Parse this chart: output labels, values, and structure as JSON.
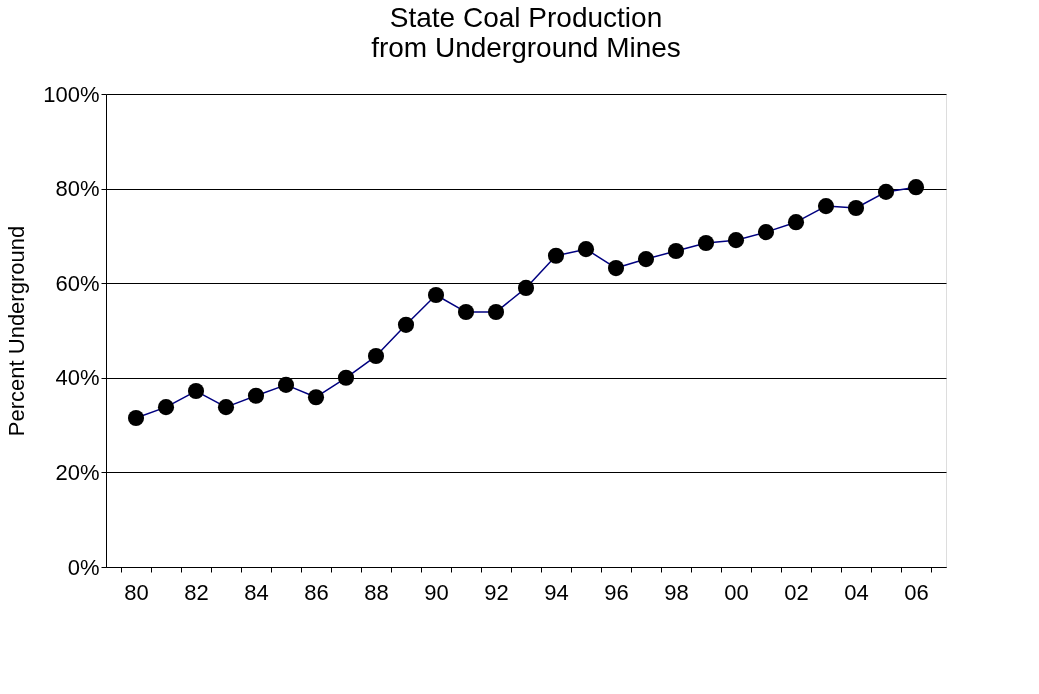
{
  "chart_data": {
    "type": "line",
    "title": [
      "State Coal Production",
      "from Underground Mines"
    ],
    "ylabel": "Percent Underground",
    "categories": [
      "80",
      null,
      "82",
      null,
      "84",
      null,
      "86",
      null,
      "88",
      null,
      "90",
      null,
      "92",
      null,
      "94",
      null,
      "96",
      null,
      "98",
      null,
      "00",
      null,
      "02",
      null,
      "04",
      null,
      "06"
    ],
    "series": [
      {
        "color": "#000080",
        "values": [
          31.5,
          33.8,
          37.2,
          33.8,
          36.2,
          38.5,
          35.9,
          40,
          44.6,
          51.2,
          57.5,
          53.9,
          53.9,
          59,
          65.8,
          67.2,
          63.2,
          65.1,
          66.8,
          68.5,
          69.1,
          70.8,
          72.9,
          76.3,
          75.9,
          79.3,
          80.3
        ]
      }
    ],
    "ylim": [
      0,
      100
    ],
    "yticks": [
      {
        "value": 0,
        "label": "0%"
      },
      {
        "value": 20,
        "label": "20%"
      },
      {
        "value": 40,
        "label": "40%"
      },
      {
        "value": 60,
        "label": "60%"
      },
      {
        "value": 80,
        "label": "80%"
      },
      {
        "value": 100,
        "label": "100%"
      }
    ],
    "grid": "y",
    "marker": "circle",
    "line_style": "solid"
  }
}
